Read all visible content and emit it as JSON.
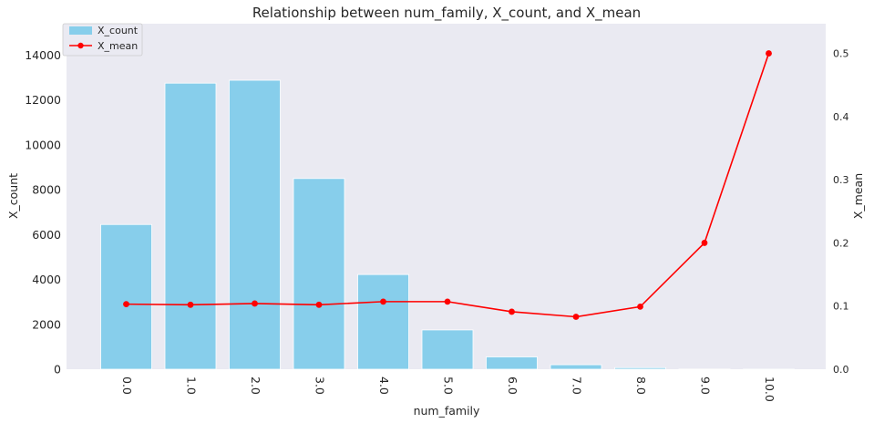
{
  "chart_data": {
    "type": "bar",
    "title": "Relationship between num_family, X_count, and X_mean",
    "xlabel": "num_family",
    "ylabel_left": "X_count",
    "ylabel_right": "X_mean",
    "categories": [
      "0.0",
      "1.0",
      "2.0",
      "3.0",
      "4.0",
      "5.0",
      "6.0",
      "7.0",
      "8.0",
      "9.0",
      "10.0"
    ],
    "ylim_left": [
      0,
      15400
    ],
    "ylim_right": [
      0,
      0.547
    ],
    "yticks_left": [
      0,
      2000,
      4000,
      6000,
      8000,
      10000,
      12000,
      14000
    ],
    "yticks_right": [
      0.0,
      0.1,
      0.2,
      0.3,
      0.4,
      0.5
    ],
    "grid": false,
    "legend_position": "top-left",
    "series": [
      {
        "name": "X_count",
        "type": "bar",
        "axis": "left",
        "color": "#87ceeb",
        "values": [
          6450,
          12750,
          12880,
          8500,
          4220,
          1750,
          550,
          200,
          70,
          5,
          2
        ]
      },
      {
        "name": "X_mean",
        "type": "line",
        "axis": "right",
        "color": "#ff0000",
        "marker": "circle",
        "values": [
          0.103,
          0.102,
          0.104,
          0.102,
          0.107,
          0.107,
          0.091,
          0.083,
          0.099,
          0.2,
          0.5
        ]
      }
    ]
  }
}
